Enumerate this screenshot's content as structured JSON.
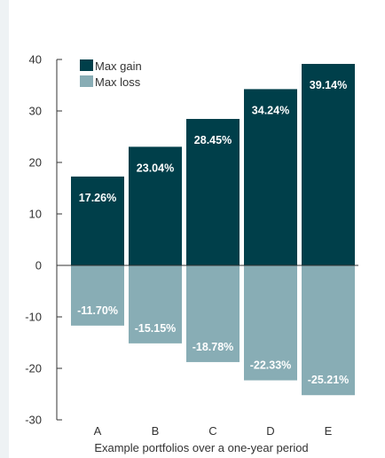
{
  "chart_data": {
    "type": "bar",
    "categories": [
      "A",
      "B",
      "C",
      "D",
      "E"
    ],
    "series": [
      {
        "name": "Max gain",
        "values": [
          17.26,
          23.04,
          28.45,
          34.24,
          39.14
        ],
        "labels": [
          "17.26%",
          "23.04%",
          "28.45%",
          "34.24%",
          "39.14%"
        ],
        "color": "#003f4a"
      },
      {
        "name": "Max loss",
        "values": [
          -11.7,
          -15.15,
          -18.78,
          -22.33,
          -25.21
        ],
        "labels": [
          "-11.70%",
          "-15.15%",
          "-18.78%",
          "-22.33%",
          "-25.21%"
        ],
        "color": "#88adb5"
      }
    ],
    "yticks": [
      "40",
      "30",
      "20",
      "10",
      "0",
      "-10",
      "-20",
      "-30"
    ],
    "ylim": [
      -30,
      40
    ],
    "xlabel": "Example portfolios over a one-year period",
    "ylabel": "",
    "title": "",
    "grid": false,
    "legend_position": "top-left"
  }
}
